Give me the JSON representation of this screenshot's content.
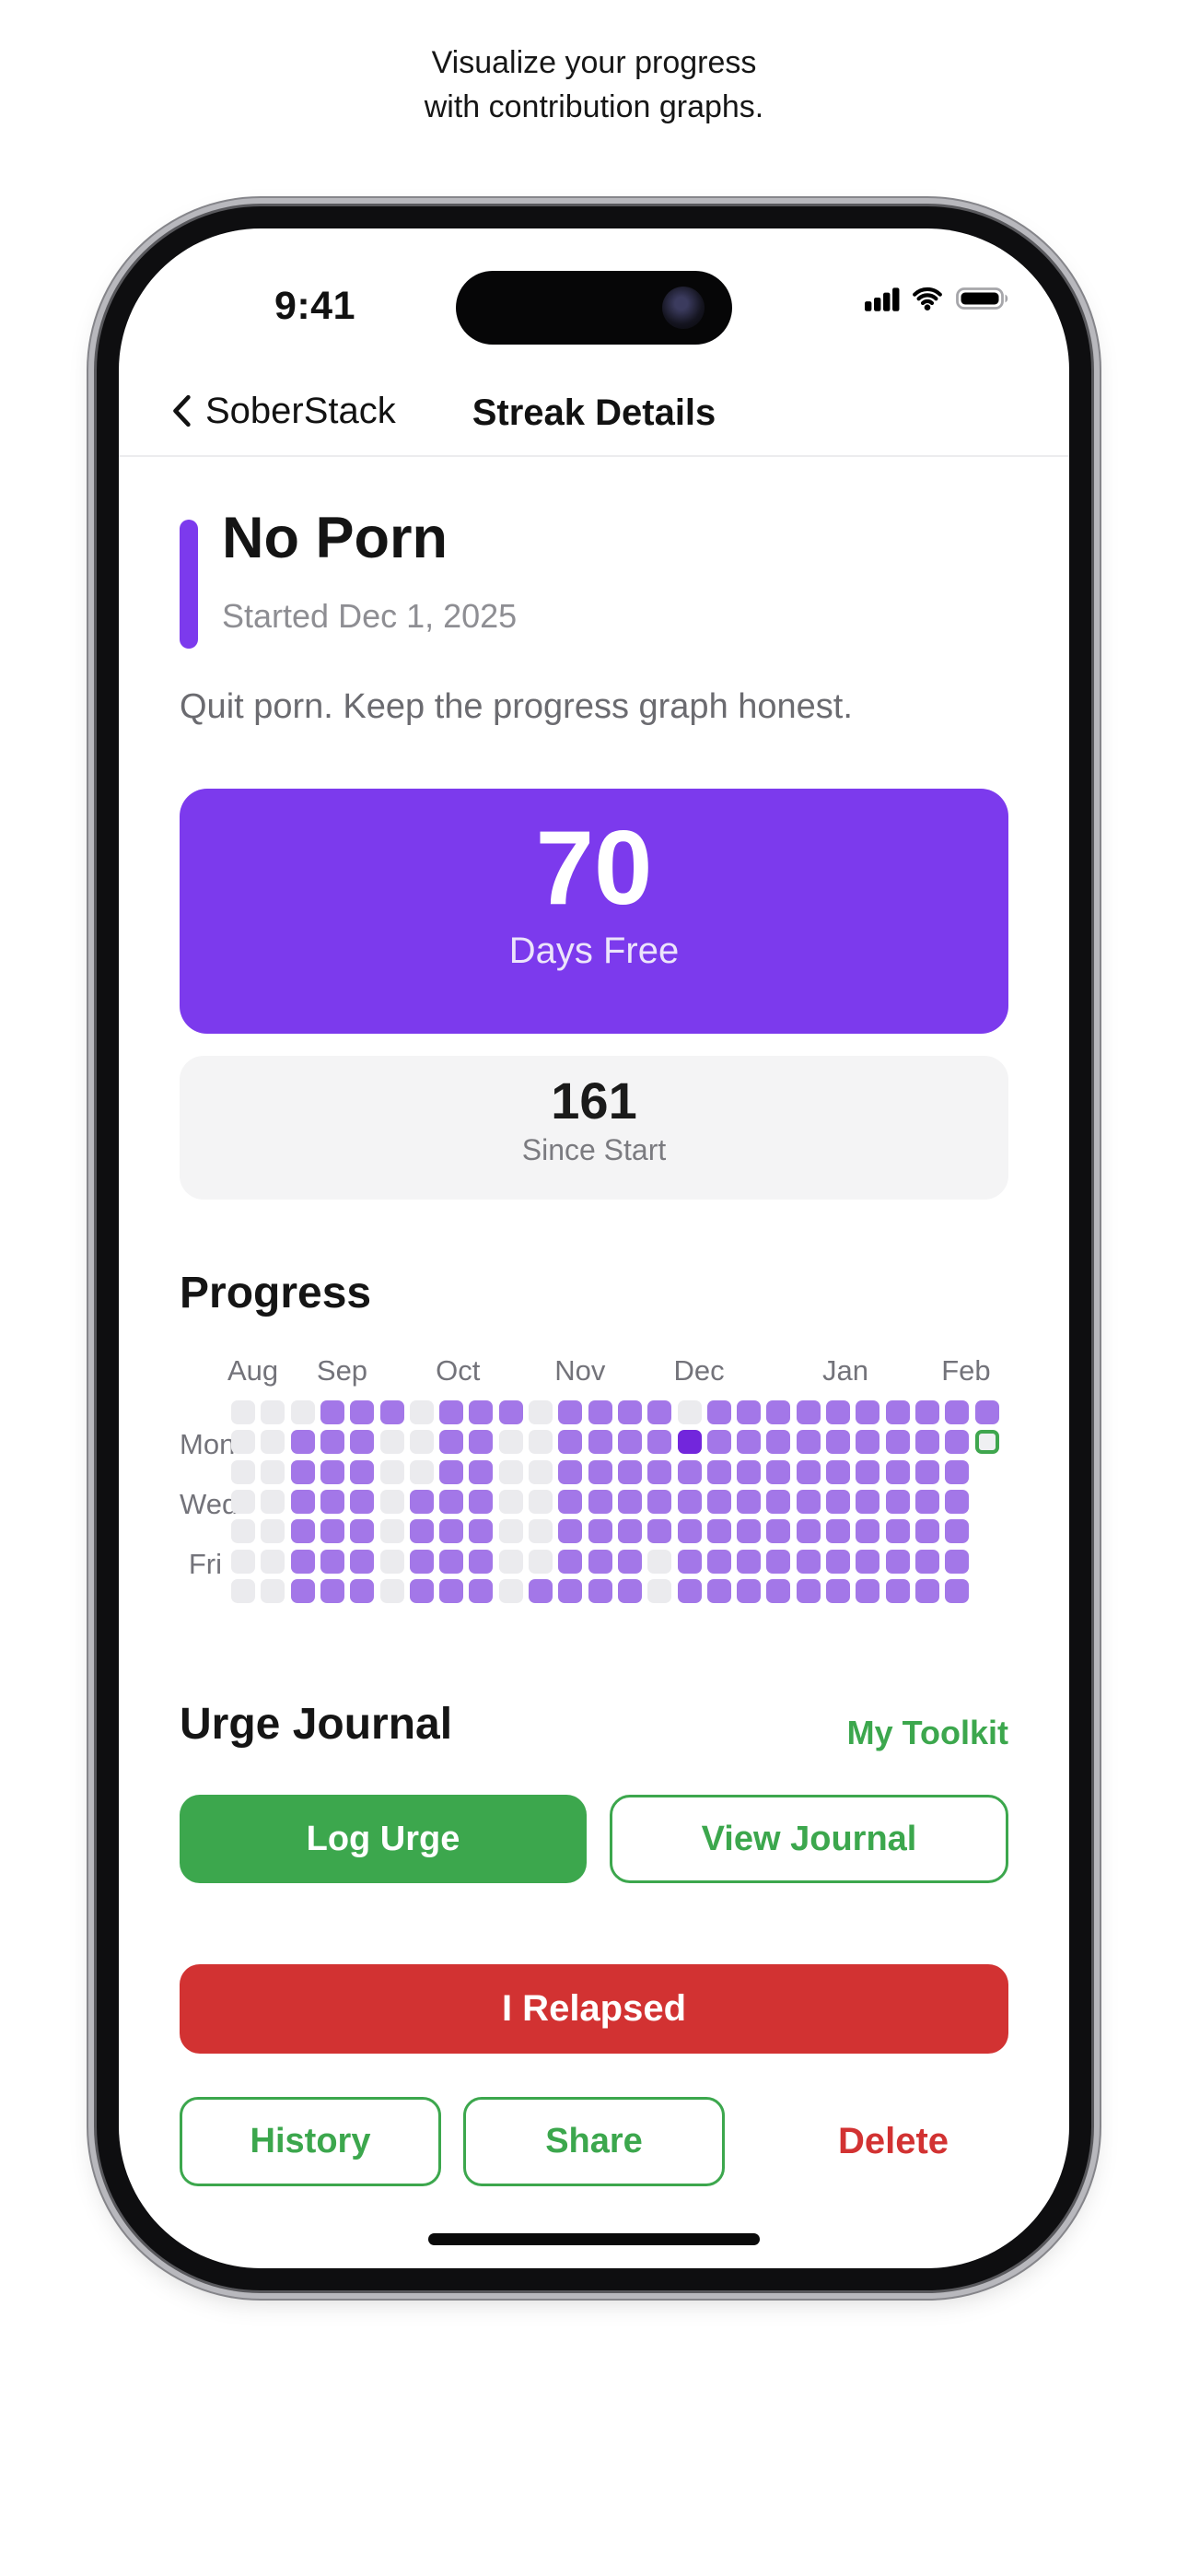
{
  "caption": {
    "line1": "Visualize your progress",
    "line2": "with contribution graphs."
  },
  "status_bar": {
    "time": "9:41"
  },
  "nav": {
    "back_label": "SoberStack",
    "title": "Streak Details"
  },
  "streak": {
    "name": "No Porn",
    "started": "Started Dec 1, 2025",
    "description": "Quit porn. Keep the progress graph honest.",
    "primary_stat": {
      "value": "70",
      "label": "Days Free"
    },
    "secondary_stat": {
      "value": "161",
      "label": "Since Start"
    }
  },
  "progress": {
    "heading": "Progress",
    "months": [
      {
        "label": "Aug",
        "col": 1
      },
      {
        "label": "Sep",
        "col": 4
      },
      {
        "label": "Oct",
        "col": 8
      },
      {
        "label": "Nov",
        "col": 12
      },
      {
        "label": "Dec",
        "col": 16
      },
      {
        "label": "Jan",
        "col": 21
      },
      {
        "label": "Feb",
        "col": 25
      }
    ],
    "day_labels": [
      {
        "label": "Mon",
        "row": 2
      },
      {
        "label": "Wed",
        "row": 4
      },
      {
        "label": "Fri",
        "row": 6
      }
    ],
    "grid": [
      "00011101110111101111111111",
      "0011100110011112111111111T",
      "0011100110011111111111111x",
      "0011101110011111111111111x",
      "0011101110011111111111111x",
      "0011101110011101111111111x",
      "0011101110111101111111111x"
    ],
    "cell_states": {
      "0": "empty",
      "1": "clean-day",
      "2": "start-day",
      "T": "today",
      "x": "absent"
    }
  },
  "urge_journal": {
    "heading": "Urge Journal",
    "toolkit_link": "My Toolkit",
    "log_urge_label": "Log Urge",
    "view_journal_label": "View Journal"
  },
  "actions": {
    "relapse_label": "I Relapsed",
    "history_label": "History",
    "share_label": "Share",
    "delete_label": "Delete"
  },
  "colors": {
    "accent_purple": "#7C3AED",
    "cell_filled": "#A377E8",
    "cell_start": "#7226DC",
    "cell_empty": "#EBEBEE",
    "today_border": "#3FA64E",
    "green": "#3CA74D",
    "red": "#D23232"
  }
}
